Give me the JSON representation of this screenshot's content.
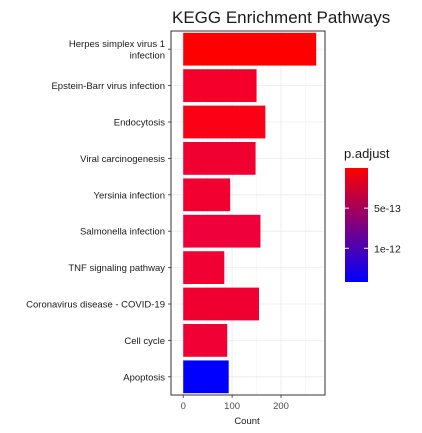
{
  "chart_data": {
    "type": "bar",
    "orientation": "horizontal",
    "title": "KEGG Enrichment Pathways",
    "xlabel": "Count",
    "ylabel": "",
    "xlim": [
      -25,
      290
    ],
    "xticks": [
      0,
      100,
      200
    ],
    "xtick_labels": [
      "0",
      "100",
      "200"
    ],
    "grid": true,
    "categories": [
      [
        "Herpes simplex virus 1",
        "infection"
      ],
      [
        "Epstein-Barr virus infection"
      ],
      [
        "Endocytosis"
      ],
      [
        "Viral carcinogenesis"
      ],
      [
        "Yersinia infection"
      ],
      [
        "Salmonella infection"
      ],
      [
        "TNF signaling pathway"
      ],
      [
        "Coronavirus disease - COVID-19"
      ],
      [
        "Cell cycle"
      ],
      [
        "Apoptosis"
      ]
    ],
    "values": [
      272,
      150,
      168,
      148,
      96,
      158,
      84,
      155,
      90,
      93
    ],
    "p_adjust": [
      1e-16,
      5e-15,
      2e-14,
      4e-14,
      8e-14,
      1.2e-13,
      1.6e-13,
      2e-13,
      2.6e-13,
      1.42e-12
    ],
    "bar_colors": [
      "#ff0000",
      "#f5002b",
      "#fc0015",
      "#f00030",
      "#f20030",
      "#f0003a",
      "#f00033",
      "#f00030",
      "#f00035",
      "#0000ff"
    ],
    "legend": {
      "title": "p.adjust",
      "position": "right",
      "colorbar_range": [
        1e-16,
        1.42e-12
      ],
      "tick_values": [
        5e-13,
        1e-12
      ],
      "tick_labels": [
        "5e-13",
        "1e-12"
      ],
      "color_low": "#ff0000",
      "color_high": "#0000ff"
    }
  }
}
